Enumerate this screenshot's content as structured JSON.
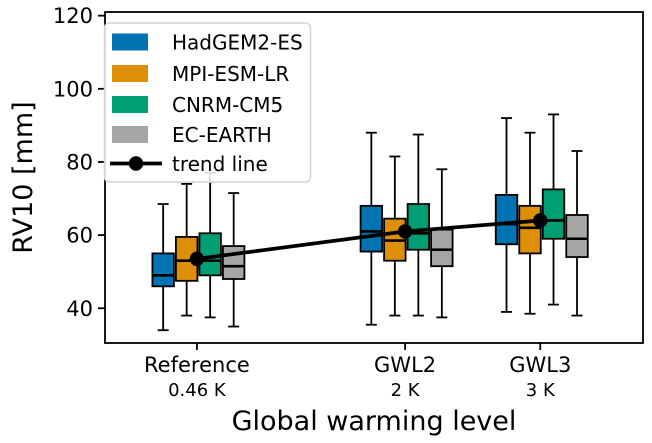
{
  "figure": {
    "background": "#ffffff"
  },
  "chart_data": {
    "type": "boxplot",
    "title": "",
    "xlabel": "Global warming level",
    "ylabel": "RV10 [mm]",
    "grid": false,
    "legend_position": "upper left",
    "ylim": [
      30.5,
      121
    ],
    "xlim": [
      -0.22,
      3.76
    ],
    "yticks": [
      120,
      100,
      80,
      60,
      40
    ],
    "categories": [
      {
        "label": "Reference",
        "sublabel": "0.46 K",
        "x": 0.46
      },
      {
        "label": "GWL2",
        "sublabel": "2 K",
        "x": 2
      },
      {
        "label": "GWL3",
        "sublabel": "3 K",
        "x": 3
      }
    ],
    "series": [
      {
        "name": "HadGEM2-ES",
        "color": "#0173b2",
        "boxes": [
          {
            "whisker_low": 34,
            "q1": 46,
            "median": 49,
            "q3": 55,
            "whisker_high": 68.5
          },
          {
            "whisker_low": 35.5,
            "q1": 55.5,
            "median": 61,
            "q3": 68,
            "whisker_high": 88
          },
          {
            "whisker_low": 39,
            "q1": 57.5,
            "median": 63,
            "q3": 71,
            "whisker_high": 92
          }
        ]
      },
      {
        "name": "MPI-ESM-LR",
        "color": "#de8f05",
        "boxes": [
          {
            "whisker_low": 38,
            "q1": 47.5,
            "median": 53,
            "q3": 59.5,
            "whisker_high": 74
          },
          {
            "whisker_low": 38,
            "q1": 53,
            "median": 58.5,
            "q3": 64.5,
            "whisker_high": 81.5
          },
          {
            "whisker_low": 38.5,
            "q1": 55,
            "median": 62,
            "q3": 68,
            "whisker_high": 88
          }
        ]
      },
      {
        "name": "CNRM-CM5",
        "color": "#029e73",
        "boxes": [
          {
            "whisker_low": 37.5,
            "q1": 49,
            "median": 53,
            "q3": 60.5,
            "whisker_high": 77
          },
          {
            "whisker_low": 38,
            "q1": 56,
            "median": 60.5,
            "q3": 68.5,
            "whisker_high": 87.5
          },
          {
            "whisker_low": 41,
            "q1": 59,
            "median": 64,
            "q3": 72.5,
            "whisker_high": 93
          }
        ]
      },
      {
        "name": "EC-EARTH",
        "color": "#a6a6a6",
        "boxes": [
          {
            "whisker_low": 35,
            "q1": 48,
            "median": 51.5,
            "q3": 57,
            "whisker_high": 71.5
          },
          {
            "whisker_low": 37.5,
            "q1": 51.5,
            "median": 56,
            "q3": 61.5,
            "whisker_high": 78
          },
          {
            "whisker_low": 38,
            "q1": 54,
            "median": 59,
            "q3": 65.5,
            "whisker_high": 83
          }
        ]
      }
    ],
    "trend": {
      "label": "trend line",
      "color": "#000000",
      "points": [
        {
          "x": 0.46,
          "y": 53.5
        },
        {
          "x": 2,
          "y": 61
        },
        {
          "x": 3,
          "y": 64
        }
      ]
    }
  }
}
